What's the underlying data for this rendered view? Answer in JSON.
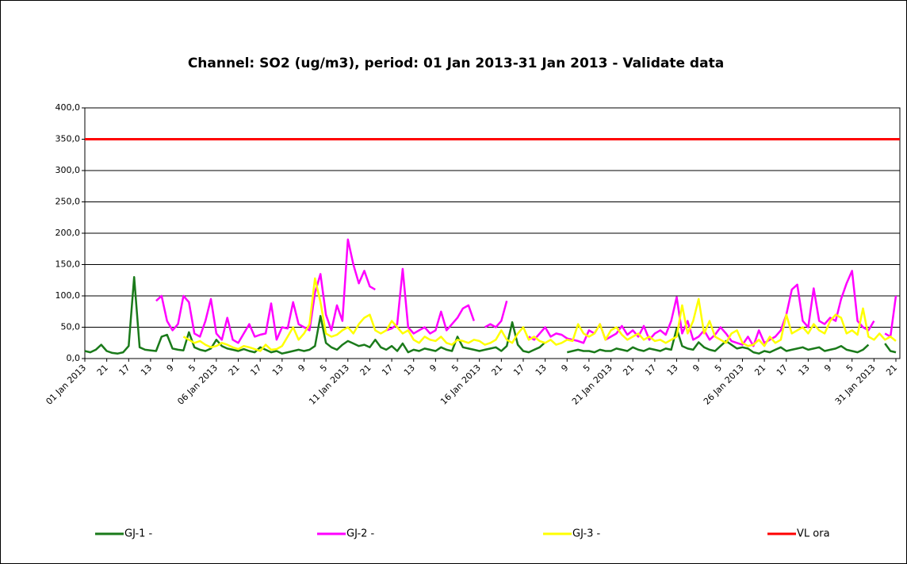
{
  "chart_data": {
    "type": "line",
    "title": "Channel: SO2 (ug/m3), period: 01 Jan 2013-31 Jan 2013 - Validate data",
    "categories": [
      "01 Jan 2013",
      null,
      null,
      null,
      "21",
      null,
      null,
      null,
      "17",
      null,
      null,
      null,
      "13",
      null,
      null,
      null,
      "9",
      null,
      null,
      null,
      "5",
      null,
      null,
      null,
      "06 Jan 2013",
      null,
      null,
      null,
      "21",
      null,
      null,
      null,
      "17",
      null,
      null,
      null,
      "13",
      null,
      null,
      null,
      "9",
      null,
      null,
      null,
      "5",
      null,
      null,
      null,
      "11 Jan 2013",
      null,
      null,
      null,
      "21",
      null,
      null,
      null,
      "17",
      null,
      null,
      null,
      "13",
      null,
      null,
      null,
      "9",
      null,
      null,
      null,
      "5",
      null,
      null,
      null,
      "16 Jan 2013",
      null,
      null,
      null,
      "21",
      null,
      null,
      null,
      "17",
      null,
      null,
      null,
      "13",
      null,
      null,
      null,
      "9",
      null,
      null,
      null,
      "5",
      null,
      null,
      null,
      "21 Jan 2013",
      null,
      null,
      null,
      "21",
      null,
      null,
      null,
      "17",
      null,
      null,
      null,
      "13",
      null,
      null,
      null,
      "9",
      null,
      null,
      null,
      "5",
      null,
      null,
      null,
      "26 Jan 2013",
      null,
      null,
      null,
      "21",
      null,
      null,
      null,
      "17",
      null,
      null,
      null,
      "13",
      null,
      null,
      null,
      "9",
      null,
      null,
      null,
      "5",
      null,
      null,
      null,
      "31 Jan 2013",
      null,
      null,
      null,
      "21"
    ],
    "series": [
      {
        "name": "GJ-1 -",
        "color": "#1a7a1a",
        "values": [
          12,
          10,
          14,
          22,
          12,
          9,
          8,
          10,
          20,
          130,
          18,
          14,
          13,
          12,
          35,
          38,
          16,
          14,
          13,
          42,
          18,
          14,
          12,
          16,
          30,
          20,
          16,
          14,
          12,
          15,
          12,
          10,
          18,
          14,
          10,
          12,
          8,
          10,
          12,
          14,
          12,
          14,
          20,
          68,
          25,
          18,
          14,
          22,
          28,
          24,
          20,
          22,
          18,
          30,
          18,
          14,
          20,
          12,
          24,
          10,
          14,
          12,
          16,
          14,
          12,
          18,
          14,
          12,
          35,
          18,
          16,
          14,
          12,
          14,
          16,
          18,
          12,
          20,
          58,
          22,
          12,
          10,
          14,
          18,
          26,
          null,
          null,
          null,
          10,
          12,
          14,
          12,
          12,
          10,
          14,
          12,
          12,
          16,
          14,
          12,
          18,
          14,
          12,
          16,
          14,
          12,
          16,
          14,
          48,
          20,
          16,
          14,
          26,
          18,
          14,
          12,
          20,
          28,
          22,
          16,
          18,
          16,
          10,
          8,
          12,
          10,
          14,
          18,
          12,
          14,
          16,
          18,
          14,
          16,
          18,
          12,
          14,
          16,
          20,
          14,
          12,
          10,
          14,
          22,
          null,
          null,
          24,
          12,
          10
        ]
      },
      {
        "name": "GJ-2 -",
        "color": "#ff00ff",
        "values": [
          null,
          null,
          null,
          null,
          null,
          null,
          null,
          null,
          null,
          null,
          null,
          null,
          null,
          92,
          100,
          60,
          45,
          55,
          100,
          90,
          40,
          35,
          60,
          95,
          40,
          30,
          65,
          30,
          25,
          40,
          55,
          35,
          38,
          40,
          88,
          30,
          50,
          48,
          90,
          55,
          50,
          45,
          105,
          135,
          70,
          45,
          85,
          60,
          190,
          150,
          120,
          140,
          115,
          110,
          null,
          45,
          48,
          55,
          143,
          50,
          40,
          45,
          50,
          40,
          45,
          75,
          45,
          55,
          65,
          80,
          85,
          60,
          null,
          50,
          55,
          50,
          60,
          92,
          null,
          90,
          null,
          35,
          30,
          40,
          50,
          35,
          40,
          38,
          32,
          30,
          28,
          25,
          45,
          40,
          55,
          30,
          35,
          40,
          52,
          38,
          45,
          35,
          52,
          30,
          40,
          45,
          38,
          60,
          98,
          40,
          60,
          30,
          35,
          45,
          30,
          38,
          50,
          40,
          28,
          25,
          22,
          35,
          20,
          45,
          25,
          30,
          35,
          45,
          70,
          110,
          118,
          60,
          50,
          112,
          60,
          55,
          65,
          60,
          95,
          120,
          140,
          60,
          50,
          45,
          60,
          null,
          40,
          35,
          100
        ]
      },
      {
        "name": "GJ-3 -",
        "color": "#ffff00",
        "values": [
          null,
          null,
          null,
          null,
          null,
          null,
          null,
          null,
          null,
          null,
          null,
          null,
          null,
          null,
          null,
          null,
          null,
          null,
          35,
          30,
          25,
          28,
          22,
          18,
          20,
          25,
          22,
          18,
          15,
          20,
          18,
          15,
          12,
          22,
          14,
          15,
          20,
          35,
          50,
          30,
          40,
          55,
          128,
          90,
          40,
          35,
          38,
          45,
          50,
          40,
          55,
          65,
          70,
          45,
          40,
          45,
          60,
          50,
          40,
          45,
          30,
          25,
          35,
          30,
          28,
          35,
          25,
          22,
          30,
          28,
          25,
          30,
          28,
          22,
          25,
          30,
          45,
          30,
          25,
          40,
          50,
          30,
          35,
          28,
          25,
          30,
          22,
          25,
          30,
          28,
          55,
          40,
          35,
          40,
          55,
          30,
          45,
          50,
          38,
          30,
          35,
          40,
          30,
          35,
          28,
          30,
          25,
          30,
          35,
          85,
          40,
          60,
          95,
          40,
          60,
          35,
          30,
          25,
          40,
          45,
          25,
          20,
          22,
          30,
          20,
          35,
          25,
          30,
          70,
          40,
          45,
          50,
          40,
          55,
          45,
          40,
          60,
          70,
          65,
          40,
          45,
          38,
          80,
          35,
          30,
          40,
          30,
          35,
          28
        ]
      }
    ],
    "reference_lines": [
      {
        "name": "VL ora",
        "color": "#ff0000",
        "value": 350
      }
    ],
    "ylim": [
      0,
      400
    ],
    "yticks": [
      {
        "value": 0,
        "label": "0,0"
      },
      {
        "value": 50,
        "label": "50,0"
      },
      {
        "value": 100,
        "label": "100,0"
      },
      {
        "value": 150,
        "label": "150,0"
      },
      {
        "value": 200,
        "label": "200,0"
      },
      {
        "value": 250,
        "label": "250,0"
      },
      {
        "value": 300,
        "label": "300,0"
      },
      {
        "value": 350,
        "label": "350,0"
      },
      {
        "value": 400,
        "label": "400,0"
      }
    ],
    "grid": true,
    "legend": "bottom"
  }
}
